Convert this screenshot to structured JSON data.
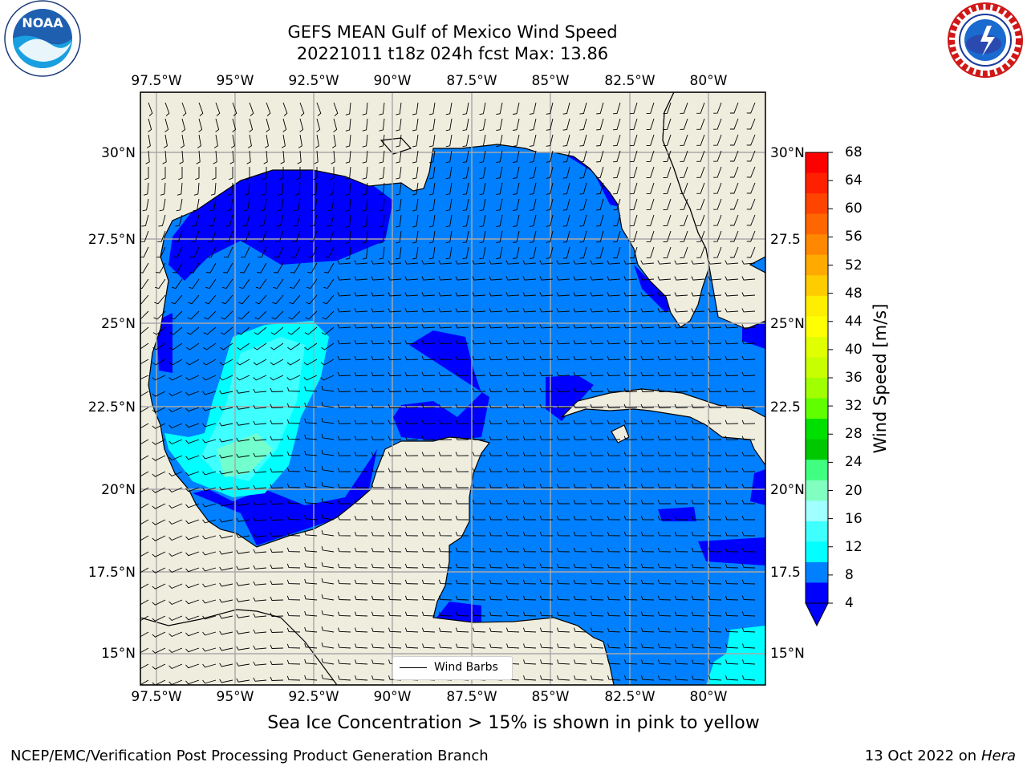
{
  "header": {
    "title_line1": "GEFS MEAN Gulf of Mexico Wind Speed",
    "title_line2": "20221011 t18z 024h fcst   Max: 13.86"
  },
  "map": {
    "lon_labels_top": [
      "97.5°W",
      "95°W",
      "92.5°W",
      "90°W",
      "87.5°W",
      "85°W",
      "82.5°W",
      "80°W"
    ],
    "lon_labels_bottom": [
      "97.5°W",
      "95°W",
      "92.5°W",
      "90°W",
      "87.5°W",
      "85°W",
      "82.5°W",
      "80°W"
    ],
    "lat_labels_left": [
      "30°N",
      "27.5°N",
      "25°N",
      "22.5°N",
      "20°N",
      "17.5°N",
      "15°N"
    ],
    "lat_labels_right": [
      "30°N",
      "27.5",
      "25°N",
      "22.5",
      "20°N",
      "17.5",
      "15°N"
    ],
    "legend_label": "Wind Barbs",
    "land_color": "#efedde",
    "ocean_color": "#0080ff"
  },
  "colorbar": {
    "title": "Wind Speed [m/s]",
    "labels": [
      "68",
      "64",
      "60",
      "56",
      "52",
      "48",
      "44",
      "40",
      "36",
      "32",
      "28",
      "24",
      "20",
      "16",
      "12",
      "8",
      "4"
    ],
    "colors": [
      "#ff0000",
      "#ff2000",
      "#ff4400",
      "#ff6600",
      "#ff8800",
      "#ffaa00",
      "#ffcc00",
      "#ffee00",
      "#ffff00",
      "#e0ff00",
      "#c8ff00",
      "#a0ff00",
      "#60ff00",
      "#00e000",
      "#00c800",
      "#40ff80",
      "#80ffc0",
      "#a0ffff",
      "#40ffff",
      "#00ffff",
      "#0080ff",
      "#0000ff"
    ]
  },
  "notes": {
    "ice": "Sea Ice Concentration > 15% is shown in pink to yellow"
  },
  "footer": {
    "left": "NCEP/EMC/Verification Post Processing Product Generation Branch",
    "date": "13 Oct 2022 on ",
    "machine": "Hera"
  },
  "logos": {
    "noaa_text": "NOAA",
    "noaa_ring": "NATIONAL OCEANIC AND ATMOSPHERIC ADMINISTRATION · U.S. DEPARTMENT OF COMMERCE",
    "nws_ring": "NATIONAL WEATHER SERVICE"
  }
}
